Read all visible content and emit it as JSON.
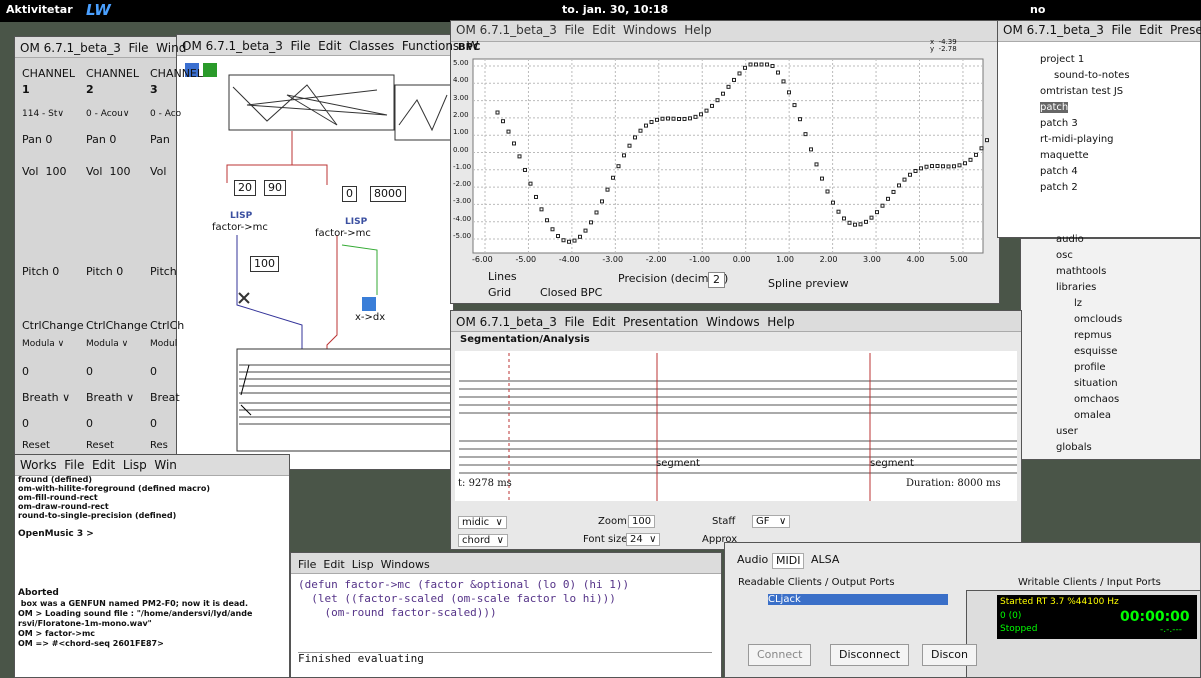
{
  "top_bar": {
    "activities": "Aktivitetar",
    "logo": "LW",
    "clock": "to. jan. 30, 10:18",
    "lang": "no"
  },
  "mixer": {
    "title": "OM 6.7.1_beta_3  File  Wind",
    "channels": [
      {
        "label": "CHANNEL",
        "number": "1",
        "program": "114 - St∨",
        "pan": "Pan 0",
        "vol": "Vol  100",
        "pitch": "Pitch 0",
        "ctrl": "CtrlChange",
        "mod": "Modula ∨",
        "mod_val": "0",
        "breath": "Breath ∨",
        "breath_val": "0",
        "reset": "Reset"
      },
      {
        "label": "CHANNEL",
        "number": "2",
        "program": "0 - Acou∨",
        "pan": "Pan 0",
        "vol": "Vol  100",
        "pitch": "Pitch 0",
        "ctrl": "CtrlChange",
        "mod": "Modula ∨",
        "mod_val": "0",
        "breath": "Breath ∨",
        "breath_val": "0",
        "reset": "Reset"
      },
      {
        "label": "CHANNEL",
        "number": "3",
        "program": "0 - Aco",
        "pan": "Pan",
        "vol": "Vol",
        "pitch": "Pitch",
        "ctrl": "CtrlCh",
        "mod": "Modul",
        "mod_val": "0",
        "breath": "Breat",
        "breath_val": "0",
        "reset": "Res"
      }
    ]
  },
  "patch": {
    "title": "OM 6.7.1_beta_3  File  Edit  Classes  Functions  W",
    "boxes": [
      "20",
      "90",
      "0",
      "8000",
      "100"
    ],
    "lisp1": "LISP",
    "func1": "factor->mc",
    "lisp2": "LISP",
    "func2": "factor->mc",
    "func3": "x->dx"
  },
  "bpc": {
    "title": "OM 6.7.1_beta_3  File  Edit  Windows  Help",
    "label": "BPC",
    "coord_x": "x  -4.39",
    "coord_y": "y  -2.78",
    "xlabels": [
      "-6.00",
      "-5.00",
      "-4.00",
      "-3.00",
      "-2.00",
      "-1.00",
      "0.00",
      "1.00",
      "2.00",
      "3.00",
      "4.00",
      "5.00"
    ],
    "ylabels": [
      "5.00",
      "4.00",
      "3.00",
      "2.00",
      "1.00",
      "0.00",
      "-1.00",
      "-2.00",
      "-3.00",
      "-4.00",
      "-5.00"
    ],
    "lines": "Lines",
    "grid": "Grid",
    "closed": "Closed BPC",
    "precision": "Precision (decimals)",
    "precision_value": "2",
    "spline": "Spline preview"
  },
  "project": {
    "title": "OM 6.7.1_beta_3  File  Edit  Presenta",
    "items": [
      "project 1",
      "sound-to-notes",
      "omtristan test JS",
      "patch",
      "patch 3",
      "rt-midi-playing",
      "maquette",
      "patch 4",
      "patch 2"
    ],
    "library": [
      "audio",
      "osc",
      "mathtools",
      "libraries",
      "lz",
      "omclouds",
      "repmus",
      "esquisse",
      "profile",
      "situation",
      "omchaos",
      "omalea",
      "user",
      "globals"
    ]
  },
  "segmentation": {
    "title": "OM 6.7.1_beta_3  File  Edit  Presentation  Windows  Help",
    "label": "Segmentation/Analysis",
    "time": "t: 9278 ms",
    "duration": "Duration: 8000 ms",
    "segments": [
      "segment",
      "segment"
    ],
    "midic": "midic  ∨",
    "chord": "chord  ∨",
    "zoom": "Zoom",
    "zoom_value": "100",
    "font_size": "Font size",
    "font_value": "24  ∨",
    "staff": "Staff",
    "staff_value": "GF   ∨",
    "approx": "Approx"
  },
  "listener": {
    "title": "Works  File  Edit  Lisp  Win",
    "lines": [
      "fround (defined)",
      "om-with-hilite-foreground (defined macro)",
      "om-fill-round-rect",
      "om-draw-round-rect",
      "round-to-single-precision (defined)"
    ],
    "prompt": "OpenMusic 3 > ",
    "aborted": "Aborted",
    "log": [
      " box was a GENFUN named PM2-F0; now it is dead.",
      "OM > Loading sound file : \"/home/andersvi/lyd/ande",
      "rsvi/Floratone-1m-mono.wav\"",
      "OM > factor->mc",
      "OM => #<chord-seq 2601FE87>"
    ]
  },
  "lisp_editor": {
    "title": "File  Edit  Lisp  Windows",
    "code": [
      "(defun factor->mc (factor &optional (lo 0) (hi 1))",
      "  (let ((factor-scaled (om-scale factor lo hi)))",
      "    (om-round factor-scaled)))"
    ],
    "status": "Finished evaluating"
  },
  "qjackctl": {
    "tabs": [
      "Audio",
      "MIDI",
      "ALSA"
    ],
    "readable": "Readable Clients / Output Ports",
    "client": "CLjack",
    "writable": "Writable Clients / Input Ports",
    "connect": "Connect",
    "disconnect": "Disconnect",
    "disconnect2": "Discon",
    "status": "Started RT 3.7 %44100 Hz",
    "xruns": "0 (0)",
    "time": "00:00:00",
    "state": "Stopped",
    "bbt": "-.-.---"
  }
}
